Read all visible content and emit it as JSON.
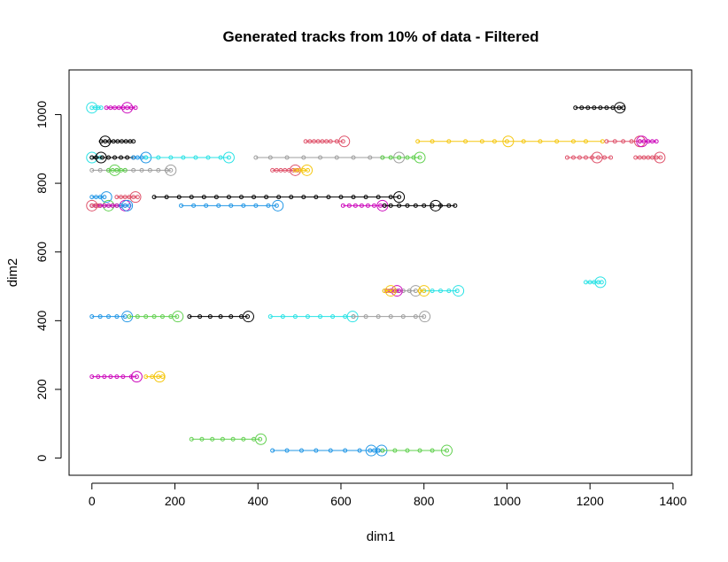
{
  "chart_data": {
    "type": "scatter",
    "title": "Generated tracks from 10% of data - Filtered",
    "xlabel": "dim1",
    "ylabel": "dim2",
    "xlim": [
      -55,
      1445
    ],
    "ylim": [
      -50,
      1130
    ],
    "xticks": [
      0,
      200,
      400,
      600,
      800,
      1000,
      1200,
      1400
    ],
    "yticks": [
      0,
      200,
      400,
      600,
      800,
      1000
    ],
    "grid": false,
    "legend": "none",
    "colors": {
      "black": "#000000",
      "red": "#DF536B",
      "green": "#61D04F",
      "blue": "#2297E6",
      "cyan": "#28E2E5",
      "magenta": "#CD0BBC",
      "yellow": "#F5C710",
      "gray": "#9E9E9E"
    },
    "series": [
      {
        "color": "cyan",
        "y": 1020,
        "x": [
          0,
          8,
          15,
          22
        ],
        "end": 0
      },
      {
        "color": "magenta",
        "y": 1020,
        "x": [
          35,
          45,
          55,
          65,
          75,
          85,
          95,
          105
        ],
        "end": 85
      },
      {
        "color": "black",
        "y": 1020,
        "x": [
          1165,
          1180,
          1195,
          1210,
          1225,
          1240,
          1255,
          1270,
          1280
        ],
        "end": 1272
      },
      {
        "color": "black",
        "y": 922,
        "x": [
          22,
          32,
          42,
          52,
          62,
          72,
          82,
          92,
          100
        ],
        "end": 32
      },
      {
        "color": "red",
        "y": 922,
        "x": [
          515,
          525,
          535,
          545,
          555,
          565,
          575,
          590,
          605
        ],
        "end": 608
      },
      {
        "color": "yellow",
        "y": 922,
        "x": [
          785,
          820,
          860,
          900,
          940,
          970,
          1000,
          1040,
          1080,
          1120,
          1160,
          1190,
          1230
        ],
        "end": 1003
      },
      {
        "color": "red",
        "y": 922,
        "x": [
          1240,
          1260,
          1280,
          1300,
          1320
        ],
        "end": 1320
      },
      {
        "color": "magenta",
        "y": 922,
        "x": [
          1320,
          1330,
          1340,
          1350,
          1360
        ],
        "end": 1325
      },
      {
        "color": "cyan",
        "y": 875,
        "x": [
          0,
          10,
          20
        ],
        "end": 0
      },
      {
        "color": "black",
        "y": 875,
        "x": [
          0,
          10,
          25,
          40,
          55,
          70,
          85,
          100
        ],
        "end": 22
      },
      {
        "color": "blue",
        "y": 875,
        "x": [
          100,
          110,
          120,
          130
        ],
        "end": 130
      },
      {
        "color": "cyan",
        "y": 875,
        "x": [
          130,
          160,
          190,
          220,
          250,
          280,
          310,
          330
        ],
        "end": 330
      },
      {
        "color": "gray",
        "y": 875,
        "x": [
          395,
          430,
          470,
          510,
          550,
          590,
          630,
          670,
          700,
          720,
          740
        ],
        "end": 740
      },
      {
        "color": "green",
        "y": 875,
        "x": [
          700,
          720,
          740,
          760,
          775,
          790
        ],
        "end": 790
      },
      {
        "color": "red",
        "y": 875,
        "x": [
          1145,
          1160,
          1175,
          1190,
          1205,
          1220,
          1235,
          1250
        ],
        "end": 1217
      },
      {
        "color": "red",
        "y": 875,
        "x": [
          1310,
          1320,
          1330,
          1340,
          1350,
          1360,
          1370
        ],
        "end": 1368
      },
      {
        "color": "gray",
        "y": 838,
        "x": [
          0,
          20,
          40,
          60,
          80,
          100,
          120,
          140,
          160,
          180,
          190
        ],
        "end": 190
      },
      {
        "color": "green",
        "y": 838,
        "x": [
          40,
          50,
          60,
          70,
          80
        ],
        "end": 55
      },
      {
        "color": "red",
        "y": 838,
        "x": [
          435,
          445,
          455,
          465,
          475,
          485,
          495
        ],
        "end": 490
      },
      {
        "color": "yellow",
        "y": 838,
        "x": [
          490,
          500,
          510,
          520
        ],
        "end": 518
      },
      {
        "color": "black",
        "y": 760,
        "x": [
          150,
          180,
          210,
          240,
          270,
          300,
          330,
          360,
          390,
          420,
          450,
          480,
          510,
          540,
          570,
          600,
          630,
          660,
          690,
          720,
          740
        ],
        "end": 740
      },
      {
        "color": "blue",
        "y": 760,
        "x": [
          0,
          10,
          20,
          30
        ],
        "end": 35
      },
      {
        "color": "red",
        "y": 760,
        "x": [
          60,
          70,
          80,
          90,
          100,
          110
        ],
        "end": 105
      },
      {
        "color": "green",
        "y": 735,
        "x": [
          0,
          10,
          20,
          30,
          40,
          50,
          60,
          70
        ],
        "end": 40
      },
      {
        "color": "magenta",
        "y": 735,
        "x": [
          0,
          10,
          20,
          30,
          40,
          50,
          60,
          70,
          80
        ],
        "end": 80
      },
      {
        "color": "blue",
        "y": 735,
        "x": [
          70,
          80,
          90
        ],
        "end": 85
      },
      {
        "color": "red",
        "y": 735,
        "x": [
          0,
          8,
          16
        ],
        "end": 0
      },
      {
        "color": "blue",
        "y": 735,
        "x": [
          215,
          245,
          275,
          305,
          335,
          365,
          395,
          425,
          445
        ],
        "end": 448
      },
      {
        "color": "magenta",
        "y": 735,
        "x": [
          605,
          620,
          635,
          650,
          665,
          680,
          695,
          705
        ],
        "end": 700
      },
      {
        "color": "black",
        "y": 735,
        "x": [
          705,
          720,
          740,
          760,
          780,
          800,
          820,
          840,
          860,
          875
        ],
        "end": 828
      },
      {
        "color": "gray",
        "y": 487,
        "x": [
          705,
          720,
          735,
          750,
          765,
          780
        ],
        "end": 780
      },
      {
        "color": "magenta",
        "y": 487,
        "x": [
          710,
          720,
          730,
          740
        ],
        "end": 735
      },
      {
        "color": "yellow",
        "y": 487,
        "x": [
          705,
          715,
          725
        ],
        "end": 720
      },
      {
        "color": "cyan",
        "y": 487,
        "x": [
          800,
          820,
          840,
          860,
          880
        ],
        "end": 883
      },
      {
        "color": "yellow",
        "y": 487,
        "x": [
          790,
          800
        ],
        "end": 800
      },
      {
        "color": "cyan",
        "y": 512,
        "x": [
          1190,
          1200,
          1210,
          1220,
          1228
        ],
        "end": 1225
      },
      {
        "color": "blue",
        "y": 412,
        "x": [
          0,
          20,
          40,
          60,
          80
        ],
        "end": 85
      },
      {
        "color": "green",
        "y": 412,
        "x": [
          90,
          110,
          130,
          150,
          170,
          190,
          205
        ],
        "end": 207
      },
      {
        "color": "black",
        "y": 412,
        "x": [
          235,
          260,
          285,
          310,
          335,
          360,
          375
        ],
        "end": 377
      },
      {
        "color": "cyan",
        "y": 412,
        "x": [
          430,
          460,
          490,
          520,
          550,
          580,
          610,
          630
        ],
        "end": 628
      },
      {
        "color": "gray",
        "y": 412,
        "x": [
          630,
          660,
          690,
          720,
          750,
          780,
          800
        ],
        "end": 802
      },
      {
        "color": "magenta",
        "y": 237,
        "x": [
          0,
          15,
          30,
          45,
          60,
          75,
          95,
          108
        ],
        "end": 108
      },
      {
        "color": "yellow",
        "y": 237,
        "x": [
          130,
          145,
          160,
          170
        ],
        "end": 163
      },
      {
        "color": "green",
        "y": 55,
        "x": [
          240,
          265,
          290,
          315,
          340,
          365,
          390,
          405
        ],
        "end": 407
      },
      {
        "color": "blue",
        "y": 22,
        "x": [
          435,
          470,
          505,
          540,
          575,
          610,
          645,
          670,
          690
        ],
        "end": 673
      },
      {
        "color": "blue",
        "y": 22,
        "x": [
          680,
          690,
          700
        ],
        "end": 698
      },
      {
        "color": "green",
        "y": 22,
        "x": [
          700,
          730,
          760,
          790,
          820,
          855
        ],
        "end": 855
      }
    ]
  }
}
